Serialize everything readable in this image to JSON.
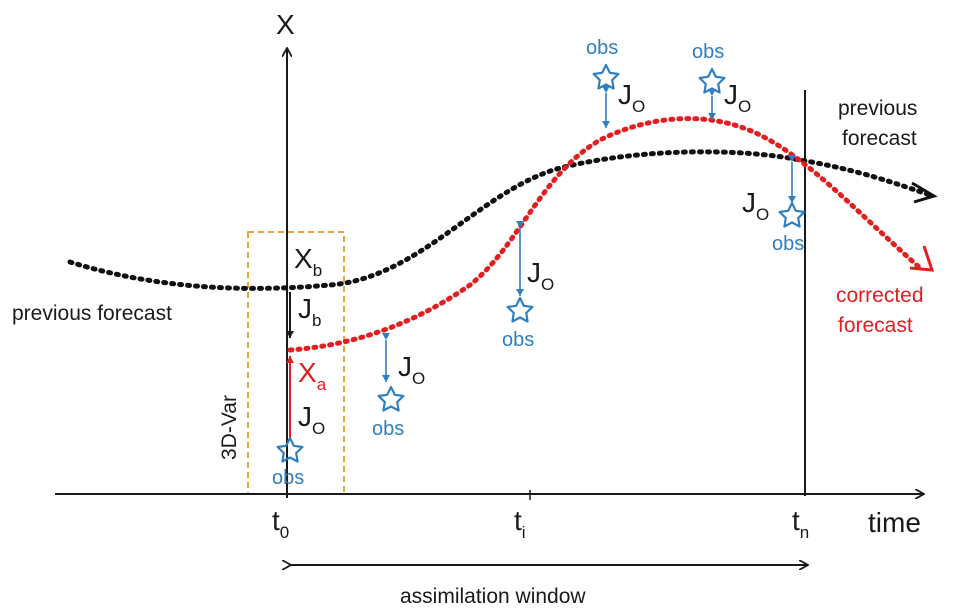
{
  "labels": {
    "x_axis_title": "X",
    "time_axis": "time",
    "t0_base": "t",
    "t0_sub": "0",
    "ti_base": "t",
    "ti_sub": "i",
    "tn_base": "t",
    "tn_sub": "n",
    "assimilation_window": "assimilation window",
    "previous_forecast_left": "previous forecast",
    "previous_forecast_right_1": "previous",
    "previous_forecast_right_2": "forecast",
    "corrected_1": "corrected",
    "corrected_2": "forecast",
    "var3d": "3D-Var",
    "xb_base": "X",
    "xb_sub": "b",
    "xa_base": "X",
    "xa_sub": "a",
    "jb_base": "J",
    "jb_sub": "b",
    "jo_base": "J",
    "jo_sub": "O",
    "obs": "obs"
  },
  "colors": {
    "axis": "#1a1a1a",
    "previous_forecast": "#111111",
    "corrected_forecast": "#e02020",
    "observation": "#2f7fbf",
    "box": "#f0a040",
    "analysis_label": "#e02020"
  }
}
